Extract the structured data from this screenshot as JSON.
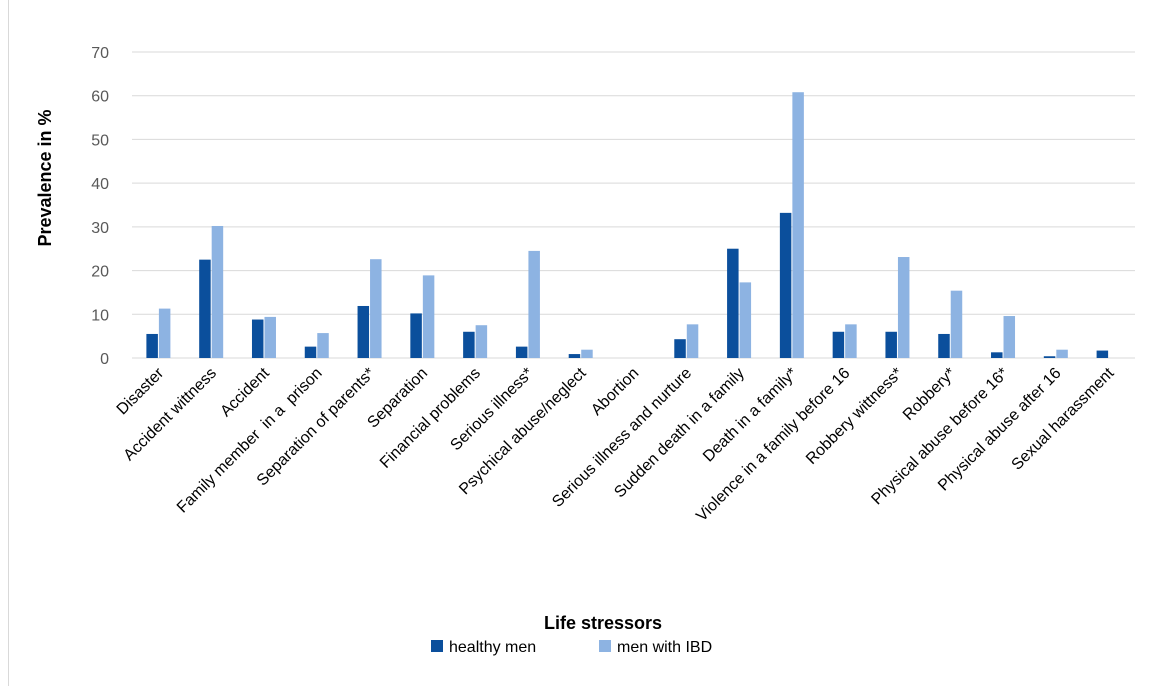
{
  "chart_data": {
    "type": "bar",
    "xlabel": "Life stressors",
    "ylabel": "Prevalence in %",
    "ylim": [
      0,
      70
    ],
    "yticks": [
      0,
      10,
      20,
      30,
      40,
      50,
      60,
      70
    ],
    "grid": true,
    "legend_position": "bottom",
    "categories": [
      "Disaster",
      "Accident wittness",
      "Accident",
      "Family member  in a  prison",
      "Separation of parents*",
      "Separation",
      "Financial problems",
      "Serious illness*",
      "Psychical abuse/neglect",
      "Abortion",
      "Serious illness and nurture",
      "Sudden death in a family",
      "Death in a family*",
      "Violence in a family before 16",
      "Robbery wittness*",
      "Robbery*",
      "Physical abuse before 16*",
      "Physical abuse after 16",
      "Sexual harassment"
    ],
    "series": [
      {
        "name": "healthy men",
        "color": "#0b4f9c",
        "values": [
          5.5,
          22.5,
          8.8,
          2.6,
          11.9,
          10.2,
          6.0,
          2.6,
          0.9,
          0,
          4.3,
          25.0,
          33.2,
          6.0,
          6.0,
          5.5,
          1.3,
          0.4,
          1.7
        ]
      },
      {
        "name": "men with IBD",
        "color": "#8db3e2",
        "values": [
          11.3,
          30.2,
          9.4,
          5.7,
          22.6,
          18.9,
          7.5,
          24.5,
          1.9,
          0,
          7.7,
          17.3,
          60.8,
          7.7,
          23.1,
          15.4,
          9.6,
          1.9,
          0
        ]
      }
    ]
  }
}
